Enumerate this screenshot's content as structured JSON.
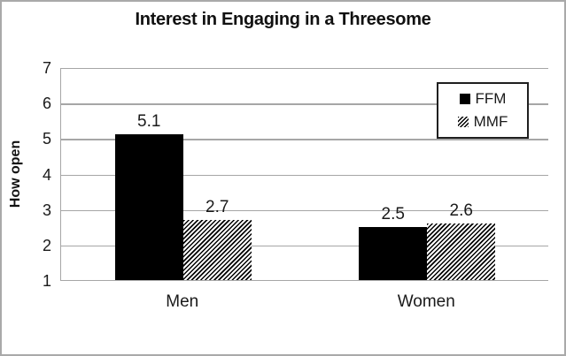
{
  "figure": {
    "background": "#ffffff",
    "frame_border_color": "#a9a9a9",
    "gridline_color": "#a6a6a6",
    "axis_line_color": "#a6a6a6",
    "text_color": "#1a1a1a",
    "bar_fill_color": "#000000"
  },
  "chart_data": {
    "type": "bar",
    "title": "Interest in Engaging in a Threesome",
    "xlabel": "",
    "ylabel": "How open",
    "ylim": [
      1,
      7
    ],
    "yticks": [
      1,
      2,
      3,
      4,
      5,
      6,
      7
    ],
    "grid": "horizontal-on",
    "legend_position": "top-right-inside-box",
    "categories": [
      "Men",
      "Women"
    ],
    "series": [
      {
        "name": "FFM",
        "fill": "solid",
        "values": [
          5.1,
          2.5
        ],
        "labels": [
          "5.1",
          "2.5"
        ]
      },
      {
        "name": "MMF",
        "fill": "hatch",
        "values": [
          2.7,
          2.6
        ],
        "labels": [
          "2.7",
          "2.6"
        ]
      }
    ]
  }
}
